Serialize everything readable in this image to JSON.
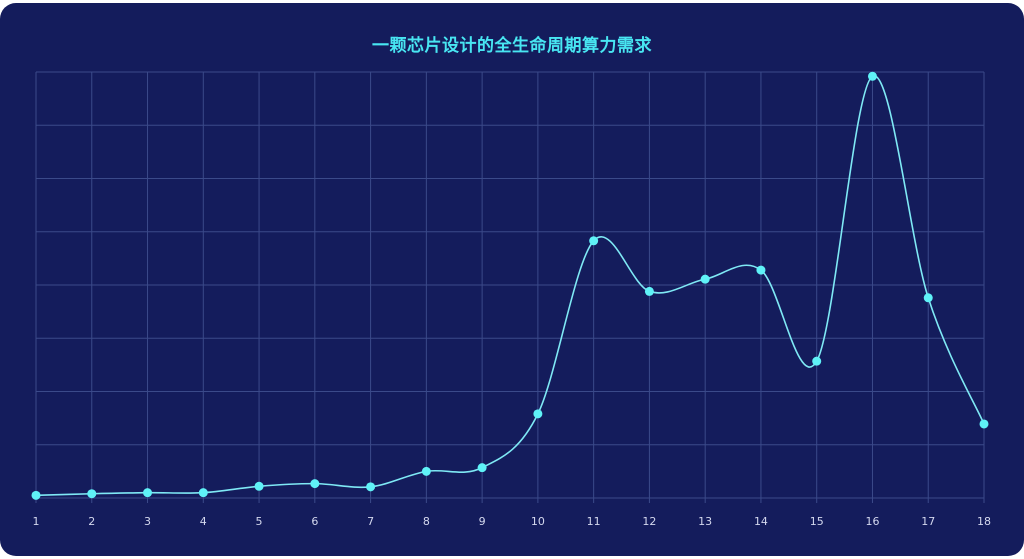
{
  "chart_data": {
    "type": "line",
    "title": "一颗芯片设计的全生命周期算力需求",
    "x": [
      "1",
      "2",
      "3",
      "4",
      "5",
      "6",
      "7",
      "8",
      "9",
      "10",
      "11",
      "12",
      "13",
      "14",
      "15",
      "16",
      "17",
      "18"
    ],
    "series": [
      {
        "values": [
          0.5,
          0.8,
          1.0,
          1.0,
          2.2,
          2.7,
          2.1,
          5.0,
          5.7,
          15.8,
          48.3,
          38.8,
          41.1,
          42.8,
          25.7,
          79.2,
          37.6,
          13.9
        ]
      }
    ],
    "xlabel": "",
    "ylabel": "",
    "ylim": [
      0,
      80
    ],
    "y_gridlines": 8,
    "grid": true,
    "smooth": true,
    "colors": {
      "background": "#141c5c",
      "grid": "#3b4a8a",
      "line": "#7fe9f5",
      "marker": "#5ff2f7",
      "title": "#48e6f2",
      "tick_label": "#d4d8ee"
    }
  }
}
